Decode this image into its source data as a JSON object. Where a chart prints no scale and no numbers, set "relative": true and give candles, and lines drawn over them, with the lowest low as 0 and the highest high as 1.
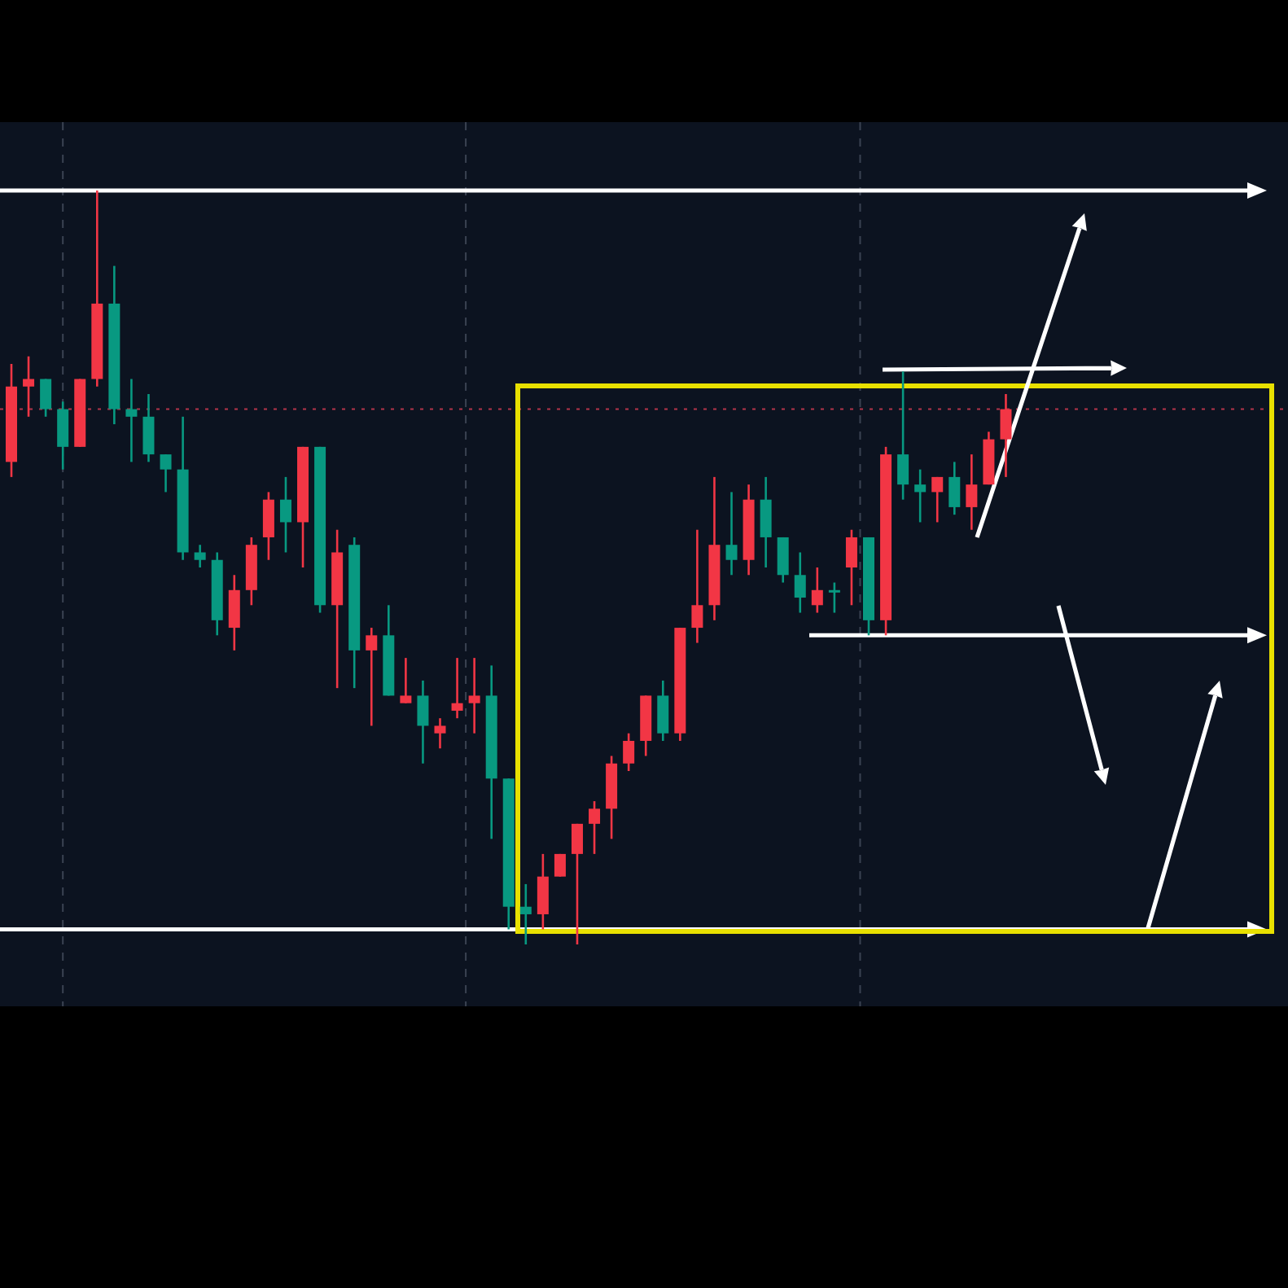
{
  "chart_data": {
    "type": "candlestick",
    "relative": true,
    "categories": [
      null,
      null,
      null,
      null,
      null,
      null,
      null,
      null,
      null,
      null,
      null,
      null,
      null,
      null,
      null,
      null,
      null,
      null,
      null,
      null,
      null,
      null,
      null,
      null,
      null,
      null,
      null,
      null,
      null,
      null,
      null,
      null,
      null,
      null,
      null,
      null,
      null,
      null,
      null,
      null,
      null,
      null,
      null,
      null,
      null,
      null,
      null,
      null,
      null,
      null,
      null,
      null,
      null,
      null,
      null,
      null,
      null,
      null,
      null
    ],
    "ohlc": [
      [
        0.64,
        0.77,
        0.62,
        0.74
      ],
      [
        0.74,
        0.78,
        0.7,
        0.75
      ],
      [
        0.75,
        0.75,
        0.7,
        0.71
      ],
      [
        0.71,
        0.72,
        0.63,
        0.66
      ],
      [
        0.66,
        0.75,
        0.66,
        0.75
      ],
      [
        0.75,
        1,
        0.74,
        0.85
      ],
      [
        0.85,
        0.9,
        0.69,
        0.71
      ],
      [
        0.71,
        0.75,
        0.64,
        0.7
      ],
      [
        0.7,
        0.73,
        0.64,
        0.65
      ],
      [
        0.65,
        0.65,
        0.6,
        0.63
      ],
      [
        0.63,
        0.7,
        0.51,
        0.52
      ],
      [
        0.52,
        0.53,
        0.5,
        0.51
      ],
      [
        0.51,
        0.52,
        0.41,
        0.43
      ],
      [
        0.42,
        0.49,
        0.39,
        0.47
      ],
      [
        0.47,
        0.54,
        0.45,
        0.53
      ],
      [
        0.54,
        0.6,
        0.51,
        0.59
      ],
      [
        0.59,
        0.62,
        0.52,
        0.56
      ],
      [
        0.56,
        0.66,
        0.5,
        0.66
      ],
      [
        0.66,
        0.66,
        0.44,
        0.45
      ],
      [
        0.45,
        0.55,
        0.34,
        0.52
      ],
      [
        0.53,
        0.54,
        0.34,
        0.39
      ],
      [
        0.39,
        0.42,
        0.29,
        0.41
      ],
      [
        0.41,
        0.45,
        0.33,
        0.33
      ],
      [
        0.32,
        0.38,
        0.32,
        0.33
      ],
      [
        0.33,
        0.35,
        0.24,
        0.29
      ],
      [
        0.28,
        0.3,
        0.26,
        0.29
      ],
      [
        0.31,
        0.38,
        0.3,
        0.32
      ],
      [
        0.32,
        0.38,
        0.28,
        0.33
      ],
      [
        0.33,
        0.37,
        0.14,
        0.22
      ],
      [
        0.22,
        0.22,
        0.02,
        0.05
      ],
      [
        0.05,
        0.08,
        0,
        0.04
      ],
      [
        0.04,
        0.12,
        0.02,
        0.09
      ],
      [
        0.09,
        0.12,
        0.09,
        0.12
      ],
      [
        0.12,
        0.16,
        0,
        0.16
      ],
      [
        0.16,
        0.19,
        0.12,
        0.18
      ],
      [
        0.18,
        0.25,
        0.14,
        0.24
      ],
      [
        0.24,
        0.28,
        0.23,
        0.27
      ],
      [
        0.27,
        0.33,
        0.25,
        0.33
      ],
      [
        0.33,
        0.35,
        0.27,
        0.28
      ],
      [
        0.28,
        0.42,
        0.27,
        0.42
      ],
      [
        0.42,
        0.55,
        0.4,
        0.45
      ],
      [
        0.45,
        0.62,
        0.43,
        0.53
      ],
      [
        0.53,
        0.6,
        0.49,
        0.51
      ],
      [
        0.51,
        0.61,
        0.49,
        0.59
      ],
      [
        0.59,
        0.62,
        0.5,
        0.54
      ],
      [
        0.54,
        0.54,
        0.48,
        0.49
      ],
      [
        0.49,
        0.52,
        0.44,
        0.46
      ],
      [
        0.45,
        0.5,
        0.44,
        0.47
      ],
      [
        0.47,
        0.48,
        0.44,
        0.47
      ],
      [
        0.5,
        0.55,
        0.45,
        0.54
      ],
      [
        0.54,
        0.54,
        0.41,
        0.43
      ],
      [
        0.43,
        0.66,
        0.41,
        0.65
      ],
      [
        0.65,
        0.76,
        0.59,
        0.61
      ],
      [
        0.61,
        0.63,
        0.56,
        0.6
      ],
      [
        0.6,
        0.62,
        0.56,
        0.62
      ],
      [
        0.62,
        0.64,
        0.57,
        0.58
      ],
      [
        0.58,
        0.65,
        0.55,
        0.61
      ],
      [
        0.61,
        0.68,
        0.61,
        0.67
      ],
      [
        0.67,
        0.73,
        0.62,
        0.71
      ]
    ],
    "colors": [
      "#f23645",
      "#f23645",
      "#089981",
      "#089981",
      "#f23645",
      "#f23645",
      "#089981",
      "#089981",
      "#089981",
      "#089981",
      "#089981",
      "#089981",
      "#089981",
      "#f23645",
      "#f23645",
      "#f23645",
      "#089981",
      "#f23645",
      "#089981",
      "#f23645",
      "#089981",
      "#f23645",
      "#089981",
      "#f23645",
      "#089981",
      "#f23645",
      "#f23645",
      "#f23645",
      "#089981",
      "#089981",
      "#089981",
      "#f23645",
      "#f23645",
      "#f23645",
      "#f23645",
      "#f23645",
      "#f23645",
      "#f23645",
      "#089981",
      "#f23645",
      "#f23645",
      "#f23645",
      "#089981",
      "#f23645",
      "#089981",
      "#089981",
      "#089981",
      "#f23645",
      "#089981",
      "#f23645",
      "#089981",
      "#f23645",
      "#089981",
      "#089981",
      "#f23645",
      "#089981",
      "#f23645",
      "#f23645",
      "#f23645"
    ],
    "ref_lines": [
      {
        "axis": "y",
        "value": 1,
        "color": "#ffffff",
        "line_style": "solid"
      },
      {
        "axis": "y",
        "value": 0.02,
        "color": "#ffffff",
        "line_style": "solid"
      },
      {
        "axis": "y",
        "value": 0.71,
        "color": "#b2344a",
        "line_style": "dotted"
      },
      {
        "axis": "y",
        "value": 0.41,
        "color": "#ffffff",
        "line_style": "solid"
      }
    ],
    "grid": "x"
  }
}
